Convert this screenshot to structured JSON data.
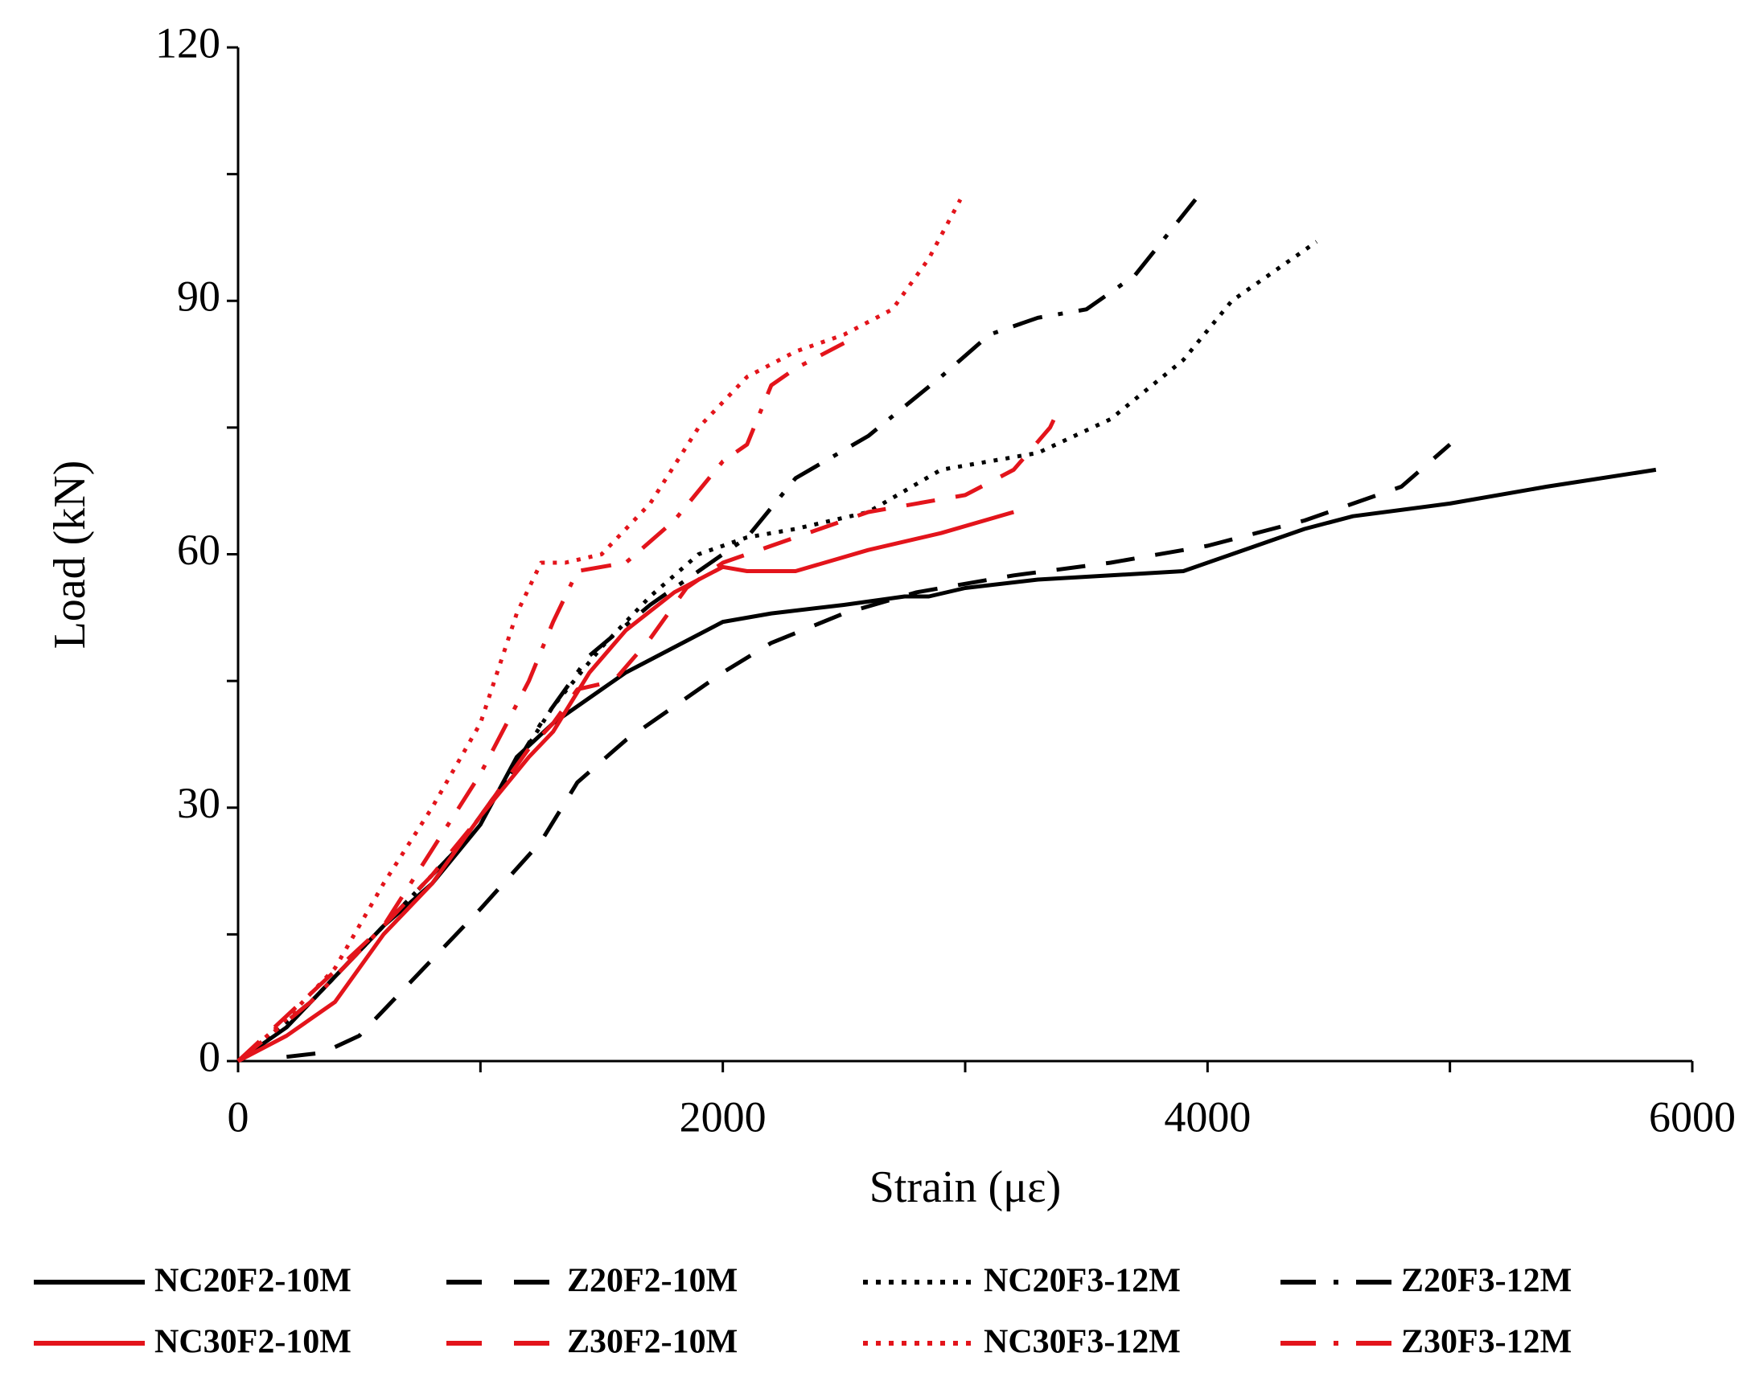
{
  "chart_data": {
    "type": "line",
    "xlabel": "Strain (με)",
    "ylabel": "Load (kN)",
    "xlim": [
      0,
      6000
    ],
    "xticks": [
      0,
      2000,
      4000,
      6000
    ],
    "minor_xticks": [
      1000,
      3000,
      5000
    ],
    "ylim": [
      0,
      120
    ],
    "yticks": [
      0,
      30,
      60,
      90,
      120
    ],
    "minor_yticks": [
      15,
      45,
      75,
      105
    ],
    "grid": false,
    "legend": "bottom",
    "series": [
      {
        "name": "NC20F2-10M",
        "color": "#000000",
        "dash": "solid",
        "x": [
          0,
          200,
          400,
          600,
          800,
          1000,
          1150,
          1300,
          1500,
          1600,
          1800,
          2000,
          2200,
          2500,
          2750,
          2850,
          3000,
          3300,
          3600,
          3900,
          4100,
          4400,
          4600,
          5000,
          5400,
          5850
        ],
        "values": [
          0,
          4,
          10,
          16,
          21,
          28,
          36,
          40,
          44,
          46,
          49,
          52,
          53,
          54,
          55,
          55,
          56,
          57,
          57.5,
          58,
          60,
          63,
          64.5,
          66,
          68,
          70
        ]
      },
      {
        "name": "Z20F2-10M",
        "color": "#000000",
        "dash": "dashed",
        "x": [
          200,
          350,
          500,
          700,
          1000,
          1250,
          1400,
          1600,
          1800,
          2000,
          2200,
          2500,
          2800,
          3200,
          3600,
          4000,
          4400,
          4800,
          5000
        ],
        "values": [
          0.5,
          1,
          3,
          9,
          18,
          26,
          33,
          38,
          42,
          46,
          49.5,
          53,
          55.5,
          57.5,
          59,
          61,
          64,
          68,
          73
        ]
      },
      {
        "name": "NC20F3-12M",
        "color": "#000000",
        "dash": "dotted",
        "x": [
          0,
          300,
          600,
          900,
          1100,
          1300,
          1500,
          1700,
          1900,
          2100,
          2300,
          2600,
          2900,
          3300,
          3600,
          3900,
          4100,
          4450
        ],
        "values": [
          0,
          7,
          16,
          25,
          33,
          42,
          49,
          55,
          60,
          62,
          63,
          65,
          70,
          72,
          76,
          83,
          90,
          97
        ]
      },
      {
        "name": "Z20F3-12M",
        "color": "#000000",
        "dash": "dashdot",
        "x": [
          0,
          300,
          600,
          900,
          1100,
          1250,
          1450,
          1700,
          1950,
          2100,
          2300,
          2600,
          2900,
          3100,
          3300,
          3500,
          3700,
          3950
        ],
        "values": [
          0,
          7,
          16,
          25,
          33,
          40,
          48,
          54,
          59,
          62,
          69,
          74,
          81,
          86,
          88,
          89,
          93,
          102
        ]
      },
      {
        "name": "NC30F2-10M",
        "color": "#e3141b",
        "dash": "solid",
        "x": [
          0,
          200,
          400,
          600,
          800,
          1000,
          1200,
          1300,
          1450,
          1600,
          1800,
          2000,
          2100,
          2300,
          2600,
          2900,
          3200
        ],
        "values": [
          0,
          3,
          7,
          15,
          21,
          29,
          36,
          39,
          46,
          51,
          55.5,
          58.5,
          58,
          58,
          60.5,
          62.5,
          65
        ]
      },
      {
        "name": "Z30F2-10M",
        "color": "#e3141b",
        "dash": "dashed",
        "x": [
          0,
          300,
          600,
          800,
          1000,
          1200,
          1300,
          1400,
          1550,
          1700,
          1850,
          2000,
          2200,
          2400,
          2600,
          2800,
          3000,
          3200,
          3350,
          3400
        ],
        "values": [
          0,
          8,
          16,
          22,
          29,
          37,
          40,
          44,
          45,
          50,
          56,
          59,
          61,
          63,
          65,
          66,
          67,
          70,
          75,
          78
        ]
      },
      {
        "name": "NC30F3-12M",
        "color": "#e3141b",
        "dash": "dotted",
        "x": [
          0,
          200,
          400,
          600,
          800,
          1000,
          1150,
          1250,
          1350,
          1500,
          1700,
          1900,
          2100,
          2300,
          2500,
          2700,
          2850,
          2980
        ],
        "values": [
          0,
          5,
          11,
          21,
          30,
          40,
          53,
          59,
          59,
          60,
          66,
          75,
          81,
          84,
          86,
          89,
          95,
          102
        ]
      },
      {
        "name": "Z30F3-12M",
        "color": "#e3141b",
        "dash": "dashdot",
        "x": [
          0,
          300,
          600,
          800,
          1000,
          1200,
          1300,
          1400,
          1600,
          1800,
          2000,
          2100,
          2200,
          2300,
          2500
        ],
        "values": [
          0,
          7,
          16,
          25,
          34,
          45,
          52,
          58,
          59,
          64,
          71,
          73,
          80,
          82,
          85
        ]
      }
    ]
  }
}
